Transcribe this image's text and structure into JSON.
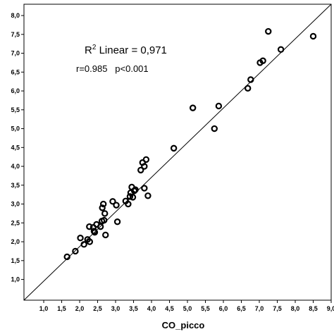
{
  "chart_data": {
    "type": "scatter",
    "xlabel": "CO_picco",
    "ylabel": "",
    "xlim": [
      0.45,
      9.0
    ],
    "ylim": [
      0.45,
      8.3
    ],
    "xticks": [
      "1,0",
      "1,5",
      "2,0",
      "2,5",
      "3,0",
      "3,5",
      "4,0",
      "4,5",
      "5,0",
      "5,5",
      "6,0",
      "6,5",
      "7,0",
      "7,5",
      "8,0",
      "8,5",
      "9,0"
    ],
    "xtick_values": [
      1.0,
      1.5,
      2.0,
      2.5,
      3.0,
      3.5,
      4.0,
      4.5,
      5.0,
      5.5,
      6.0,
      6.5,
      7.0,
      7.5,
      8.0,
      8.5,
      9.0
    ],
    "yticks": [
      "1,0",
      "1,5",
      "2,0",
      "2,5",
      "3,0",
      "3,5",
      "4,0",
      "4,5",
      "5,0",
      "5,5",
      "6,0",
      "6,5",
      "7,0",
      "7,5",
      "8,0"
    ],
    "ytick_values": [
      1.0,
      1.5,
      2.0,
      2.5,
      3.0,
      3.5,
      4.0,
      4.5,
      5.0,
      5.5,
      6.0,
      6.5,
      7.0,
      7.5,
      8.0
    ],
    "grid": false,
    "fit_line": {
      "type": "linear",
      "x": [
        0.45,
        9.0
      ],
      "y": [
        0.45,
        8.66
      ]
    },
    "annotations": {
      "r2_label": "R",
      "r2_sup": "2",
      "r2_rest": " Linear = 0,971",
      "stats": "r=0.985   p<0.001"
    },
    "points": [
      {
        "x": 1.65,
        "y": 1.6
      },
      {
        "x": 1.88,
        "y": 1.75
      },
      {
        "x": 2.02,
        "y": 2.1
      },
      {
        "x": 2.12,
        "y": 1.93
      },
      {
        "x": 2.22,
        "y": 2.06
      },
      {
        "x": 2.28,
        "y": 2.0
      },
      {
        "x": 2.27,
        "y": 2.4
      },
      {
        "x": 2.38,
        "y": 2.38
      },
      {
        "x": 2.42,
        "y": 2.25
      },
      {
        "x": 2.47,
        "y": 2.46
      },
      {
        "x": 2.4,
        "y": 2.28
      },
      {
        "x": 2.58,
        "y": 2.4
      },
      {
        "x": 2.62,
        "y": 2.55
      },
      {
        "x": 2.63,
        "y": 2.9
      },
      {
        "x": 2.68,
        "y": 2.57
      },
      {
        "x": 2.66,
        "y": 3.0
      },
      {
        "x": 2.72,
        "y": 2.18
      },
      {
        "x": 2.7,
        "y": 2.75
      },
      {
        "x": 2.92,
        "y": 3.07
      },
      {
        "x": 3.02,
        "y": 2.97
      },
      {
        "x": 3.05,
        "y": 2.53
      },
      {
        "x": 3.28,
        "y": 3.08
      },
      {
        "x": 3.35,
        "y": 3.0
      },
      {
        "x": 3.4,
        "y": 3.2
      },
      {
        "x": 3.42,
        "y": 3.3
      },
      {
        "x": 3.45,
        "y": 3.45
      },
      {
        "x": 3.48,
        "y": 3.18
      },
      {
        "x": 3.52,
        "y": 3.35
      },
      {
        "x": 3.55,
        "y": 3.38
      },
      {
        "x": 3.7,
        "y": 3.9
      },
      {
        "x": 3.75,
        "y": 4.1
      },
      {
        "x": 3.8,
        "y": 4.0
      },
      {
        "x": 3.8,
        "y": 3.42
      },
      {
        "x": 3.85,
        "y": 4.18
      },
      {
        "x": 3.9,
        "y": 3.22
      },
      {
        "x": 4.62,
        "y": 4.48
      },
      {
        "x": 5.15,
        "y": 5.55
      },
      {
        "x": 5.75,
        "y": 5.0
      },
      {
        "x": 5.87,
        "y": 5.6
      },
      {
        "x": 6.68,
        "y": 6.07
      },
      {
        "x": 6.76,
        "y": 6.3
      },
      {
        "x": 7.02,
        "y": 6.75
      },
      {
        "x": 7.1,
        "y": 6.8
      },
      {
        "x": 7.25,
        "y": 7.58
      },
      {
        "x": 7.6,
        "y": 7.1
      },
      {
        "x": 8.5,
        "y": 7.45
      }
    ]
  }
}
